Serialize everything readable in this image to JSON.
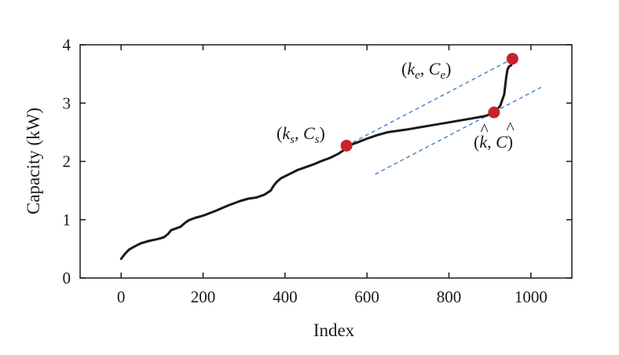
{
  "chart_data": {
    "type": "line",
    "xlabel": "Index",
    "ylabel": "Capacity (kW)",
    "xlim": [
      -100,
      1100
    ],
    "ylim": [
      0,
      4
    ],
    "xticks": [
      0,
      200,
      400,
      600,
      800,
      1000
    ],
    "yticks": [
      0,
      1,
      2,
      3,
      4
    ],
    "grid": false,
    "colors": {
      "curve": "#1a1a1a",
      "markers": "#c8232c",
      "dashed_lines": "#3f7fbf"
    },
    "series": [
      {
        "x": [
          0,
          10,
          20,
          35,
          50,
          70,
          90,
          105,
          115,
          122,
          130,
          145,
          155,
          165,
          180,
          200,
          230,
          260,
          290,
          310,
          330,
          350,
          365,
          372,
          380,
          390,
          410,
          430,
          450,
          470,
          490,
          510,
          530,
          545,
          550,
          575,
          600,
          625,
          650,
          700,
          750,
          800,
          850,
          890,
          910,
          925,
          935,
          940,
          943,
          947,
          952,
          955
        ],
        "y": [
          0.33,
          0.42,
          0.49,
          0.55,
          0.6,
          0.64,
          0.67,
          0.7,
          0.76,
          0.82,
          0.84,
          0.88,
          0.94,
          0.99,
          1.03,
          1.07,
          1.15,
          1.24,
          1.32,
          1.36,
          1.38,
          1.43,
          1.5,
          1.58,
          1.65,
          1.71,
          1.78,
          1.85,
          1.9,
          1.95,
          2.01,
          2.06,
          2.13,
          2.2,
          2.26,
          2.32,
          2.39,
          2.45,
          2.5,
          2.55,
          2.61,
          2.67,
          2.73,
          2.78,
          2.84,
          2.95,
          3.15,
          3.45,
          3.58,
          3.63,
          3.65,
          3.76
        ]
      }
    ],
    "dashed_lines": [
      {
        "x": [
          550,
          955
        ],
        "y": [
          2.27,
          3.76
        ]
      },
      {
        "x": [
          620,
          1025
        ],
        "y": [
          1.78,
          3.27
        ]
      }
    ],
    "points": [
      {
        "label": "(k_s, C_s)",
        "x": 550,
        "y": 2.27
      },
      {
        "label": "(k-hat, C-hat)",
        "x": 910,
        "y": 2.84
      },
      {
        "label": "(k_e, C_e)",
        "x": 955,
        "y": 3.76
      }
    ]
  }
}
